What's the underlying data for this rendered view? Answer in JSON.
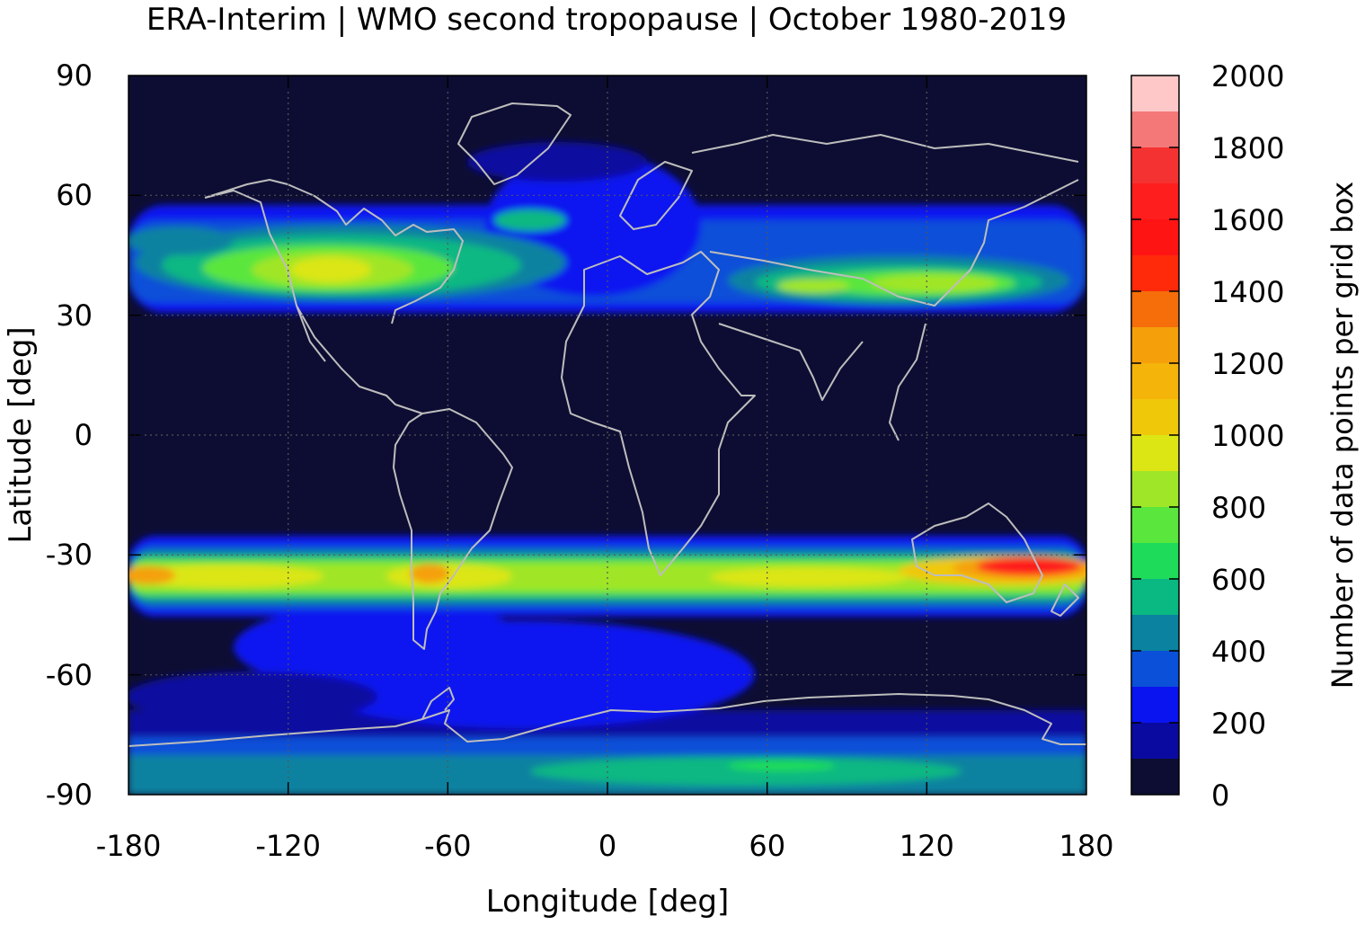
{
  "chart_data": {
    "type": "heatmap",
    "title": "ERA-Interim | WMO second tropopause | October 1980-2019",
    "xlabel": "Longitude [deg]",
    "ylabel": "Latitude [deg]",
    "colorbar_label": "Number of data points per grid box",
    "xlim": [
      -180,
      180
    ],
    "ylim": [
      -90,
      90
    ],
    "x_ticks": [
      "-180",
      "-120",
      "-60",
      "0",
      "60",
      "120",
      "180"
    ],
    "y_ticks": [
      "90",
      "60",
      "30",
      "0",
      "-30",
      "-60",
      "-90"
    ],
    "colorbar_ticks": [
      "2000",
      "1800",
      "1600",
      "1400",
      "1200",
      "1000",
      "800",
      "600",
      "400",
      "200",
      "0"
    ],
    "colorbar_range": [
      0,
      2000
    ],
    "colorbar_step": 100,
    "colorbar_colors": [
      "#0d0d33",
      "#0a0aa0",
      "#0a14f0",
      "#0a50d8",
      "#0a82a0",
      "#0ab882",
      "#1edc5a",
      "#5ae63c",
      "#a0e628",
      "#dce614",
      "#f0c80a",
      "#f5b40a",
      "#f5a00a",
      "#f56e0a",
      "#ff2a0a",
      "#ff1414",
      "#ff1e1e",
      "#f53232",
      "#f57878",
      "#ffc8c8"
    ],
    "grid": true,
    "overlay": "coastlines",
    "bands": [
      {
        "region": "northern-hemisphere-jet",
        "lat_center": 42,
        "lon_range": [
          -180,
          180
        ],
        "peak_value": 1050,
        "peak_lon": -105
      },
      {
        "region": "southern-hemisphere-jet",
        "lat_center": -34,
        "lon_range": [
          -180,
          180
        ],
        "peak_value": 1700,
        "peak_lon": 150
      },
      {
        "region": "southern-ocean",
        "lat_center": -60,
        "lon_range": [
          -180,
          180
        ],
        "peak_value": 350
      },
      {
        "region": "antarctica",
        "lat_center": -85,
        "lon_range": [
          -180,
          180
        ],
        "peak_value": 650,
        "peak_lon": 60
      }
    ]
  }
}
